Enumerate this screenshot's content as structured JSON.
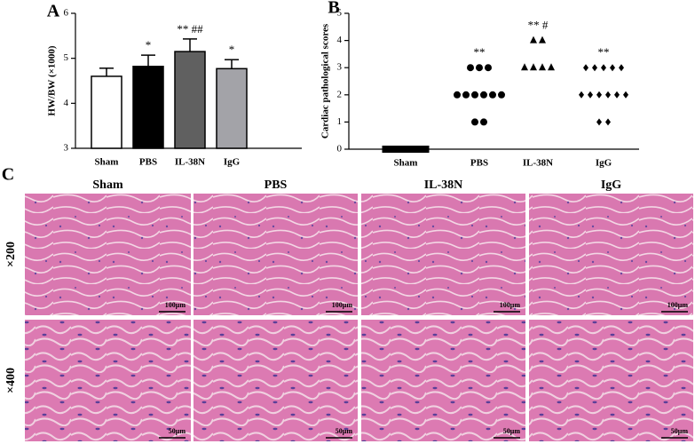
{
  "chart_data": [
    {
      "type": "bar",
      "panel_label": "A",
      "ylabel": "HW/BW (×1000)",
      "categories": [
        "Sham",
        "PBS",
        "IL-38N",
        "IgG"
      ],
      "values": [
        4.6,
        4.82,
        5.15,
        4.77
      ],
      "errors": [
        0.18,
        0.25,
        0.28,
        0.2
      ],
      "colors": [
        "#ffffff",
        "#000000",
        "#606060",
        "#a3a3a8"
      ],
      "annotations": [
        null,
        "*",
        "** ##",
        "*"
      ],
      "ylim": [
        3,
        6
      ],
      "yticks": [
        3,
        4,
        5,
        6
      ]
    },
    {
      "type": "dot",
      "panel_label": "B",
      "ylabel": "Cardiac pathological scores",
      "categories": [
        "Sham",
        "PBS",
        "IL-38N",
        "IgG"
      ],
      "values": [
        [
          0,
          0,
          0,
          0,
          0,
          0,
          0,
          0,
          0,
          0
        ],
        [
          3,
          3,
          3,
          2,
          2,
          2,
          2,
          2,
          2,
          1,
          1
        ],
        [
          4,
          4,
          3,
          3,
          3,
          3
        ],
        [
          3,
          3,
          3,
          3,
          3,
          2,
          2,
          2,
          2,
          2,
          2,
          1,
          1
        ]
      ],
      "markers": [
        "square",
        "circle",
        "triangle",
        "diamond"
      ],
      "color": "#000000",
      "annotations": [
        null,
        "**",
        "** #",
        "**"
      ],
      "ylim": [
        0,
        5
      ],
      "yticks": [
        0,
        1,
        2,
        3,
        4,
        5
      ]
    }
  ],
  "panel_c": {
    "label": "C",
    "columns": [
      "Sham",
      "PBS",
      "IL-38N",
      "IgG"
    ],
    "rows": [
      "×200",
      "×400"
    ],
    "scale_bars": [
      "100μm",
      "50μm"
    ]
  }
}
